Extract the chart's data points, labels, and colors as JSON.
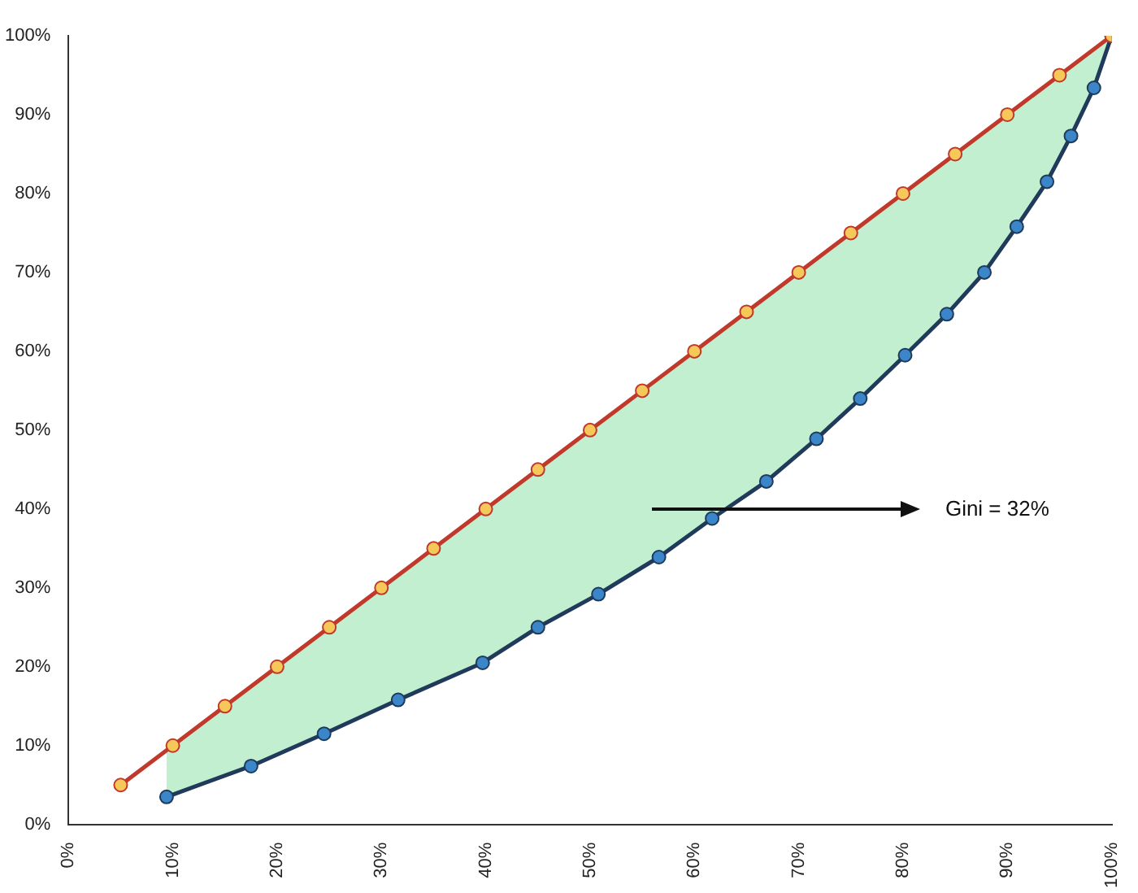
{
  "chart_data": {
    "type": "line",
    "annotations": [
      "Gini = 32%"
    ],
    "series": [
      {
        "color": "#c0392b",
        "x": [
          5,
          10,
          15,
          20,
          25,
          30,
          35,
          40,
          45,
          50,
          55,
          60,
          65,
          70,
          75,
          80,
          85,
          90,
          95,
          100
        ],
        "values": [
          5,
          10,
          15,
          20,
          25,
          30,
          35,
          40,
          45,
          50,
          55,
          60,
          65,
          70,
          75,
          80,
          85,
          90,
          95,
          100
        ]
      },
      {
        "color": "#1f3a5a",
        "x": [
          9.4,
          17.5,
          24.5,
          31.6,
          39.7,
          45,
          50.8,
          56.6,
          61.7,
          66.9,
          71.7,
          75.9,
          80.2,
          84.2,
          87.8,
          90.9,
          93.8,
          96.1,
          98.3,
          100
        ],
        "values": [
          3.5,
          7.4,
          11.5,
          15.8,
          20.5,
          25,
          29.2,
          33.9,
          38.8,
          43.5,
          48.9,
          54,
          59.5,
          64.7,
          70,
          75.8,
          81.5,
          87.3,
          93.4,
          100
        ],
        "lower": [
          3.5,
          7.4,
          11.5,
          15.8,
          20.5,
          25,
          29.2,
          33.9,
          38.8,
          43.5,
          48.9,
          54,
          59.5,
          64.7,
          70,
          75.8,
          81.5,
          87.3,
          93.4,
          100
        ],
        "upper": [
          9.4,
          17.5,
          24.5,
          31.6,
          39.7,
          45,
          50.8,
          56.6,
          61.7,
          66.9,
          71.7,
          75.9,
          80.2,
          84.2,
          87.8,
          90.9,
          93.8,
          96.1,
          98.3,
          100
        ]
      }
    ],
    "xlim": [
      0,
      100
    ],
    "xticks": [
      {
        "value": 0,
        "label": "0%"
      },
      {
        "value": 10,
        "label": "10%"
      },
      {
        "value": 20,
        "label": "20%"
      },
      {
        "value": 30,
        "label": "30%"
      },
      {
        "value": 40,
        "label": "40%"
      },
      {
        "value": 50,
        "label": "50%"
      },
      {
        "value": 60,
        "label": "60%"
      },
      {
        "value": 70,
        "label": "70%"
      },
      {
        "value": 80,
        "label": "80%"
      },
      {
        "value": 90,
        "label": "90%"
      },
      {
        "value": 100,
        "label": "100%"
      }
    ],
    "ylim": [
      0,
      100
    ],
    "yticks": [
      {
        "value": 0,
        "label": "0%"
      },
      {
        "value": 10,
        "label": "10%"
      },
      {
        "value": 20,
        "label": "20%"
      },
      {
        "value": 30,
        "label": "30%"
      },
      {
        "value": 40,
        "label": "40%"
      },
      {
        "value": 50,
        "label": "50%"
      },
      {
        "value": 60,
        "label": "60%"
      },
      {
        "value": 70,
        "label": "70%"
      },
      {
        "value": 80,
        "label": "80%"
      },
      {
        "value": 90,
        "label": "90%"
      },
      {
        "value": 100,
        "label": "100%"
      }
    ],
    "grid": false,
    "legend": false,
    "marker": "circle",
    "line_style": "solid"
  }
}
